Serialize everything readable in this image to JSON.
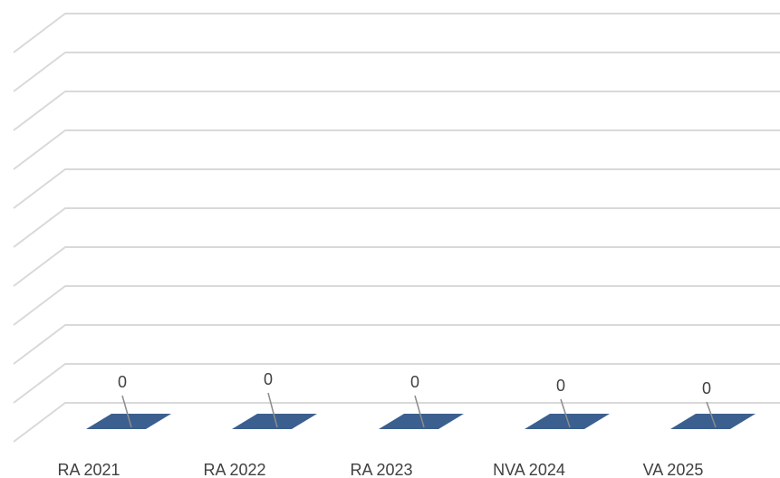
{
  "chart_data": {
    "type": "bar",
    "categories": [
      "RA 2021",
      "RA 2022",
      "RA 2023",
      "NVA 2024",
      "VA 2025"
    ],
    "values": [
      0,
      0,
      0,
      0,
      0
    ],
    "data_labels": [
      "0",
      "0",
      "0",
      "0",
      "0"
    ],
    "grid": true,
    "gridline_count": 11,
    "three_d": true,
    "bar_color": "#3b5f8f",
    "grid_color": "#d9d9d9",
    "text_color": "#404040"
  }
}
